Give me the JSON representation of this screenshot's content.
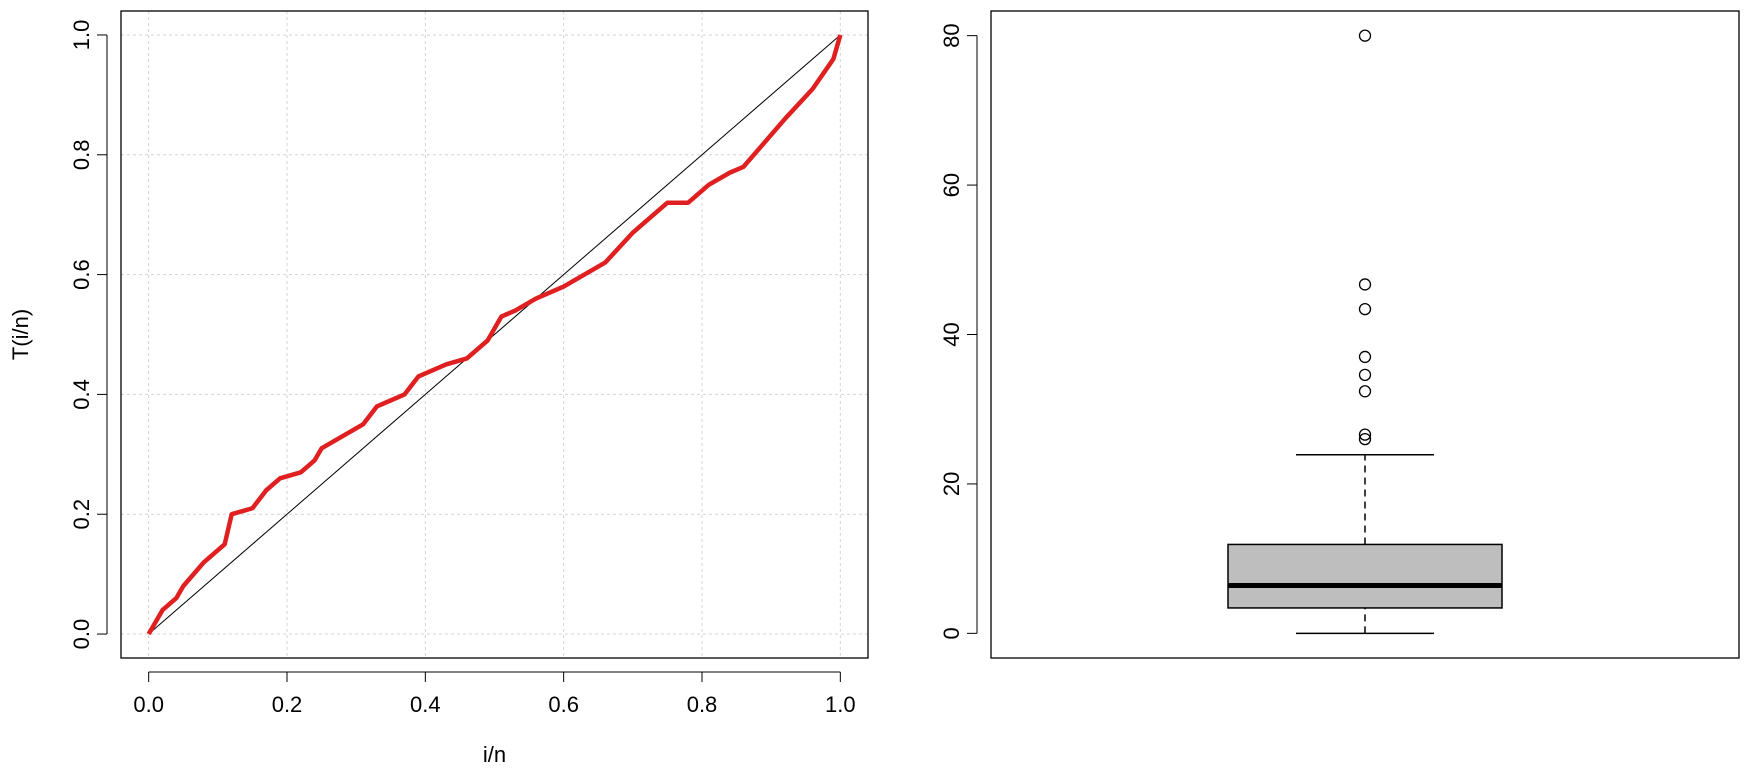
{
  "chart_data": [
    {
      "type": "line",
      "xlabel": "i/n",
      "ylabel": "T(i/n)",
      "xlim": [
        -0.04,
        1.04
      ],
      "ylim": [
        -0.04,
        1.04
      ],
      "grid": true,
      "xticks": [
        {
          "value": 0,
          "label": "0.0"
        },
        {
          "value": 0.2,
          "label": "0.2"
        },
        {
          "value": 0.4,
          "label": "0.4"
        },
        {
          "value": 0.6,
          "label": "0.6"
        },
        {
          "value": 0.8,
          "label": "0.8"
        },
        {
          "value": 1,
          "label": "1.0"
        }
      ],
      "yticks": [
        {
          "value": 0,
          "label": "0.0"
        },
        {
          "value": 0.2,
          "label": "0.2"
        },
        {
          "value": 0.4,
          "label": "0.4"
        },
        {
          "value": 0.6,
          "label": "0.6"
        },
        {
          "value": 0.8,
          "label": "0.8"
        },
        {
          "value": 1,
          "label": "1.0"
        }
      ],
      "series": [
        {
          "color": "#000000",
          "x": [
            0,
            1
          ],
          "values": [
            0,
            1
          ]
        },
        {
          "color": "#e02020",
          "x": [
            0,
            0.02,
            0.04,
            0.05,
            0.08,
            0.1,
            0.11,
            0.12,
            0.15,
            0.17,
            0.19,
            0.22,
            0.24,
            0.25,
            0.28,
            0.31,
            0.33,
            0.37,
            0.39,
            0.43,
            0.46,
            0.49,
            0.51,
            0.53,
            0.56,
            0.58,
            0.6,
            0.63,
            0.66,
            0.7,
            0.75,
            0.78,
            0.81,
            0.84,
            0.86,
            0.89,
            0.92,
            0.96,
            0.99,
            1
          ],
          "values": [
            0,
            0.04,
            0.06,
            0.08,
            0.12,
            0.14,
            0.15,
            0.2,
            0.21,
            0.24,
            0.26,
            0.27,
            0.29,
            0.31,
            0.33,
            0.35,
            0.38,
            0.4,
            0.43,
            0.45,
            0.46,
            0.49,
            0.53,
            0.54,
            0.56,
            0.57,
            0.58,
            0.6,
            0.62,
            0.67,
            0.72,
            0.72,
            0.75,
            0.77,
            0.78,
            0.82,
            0.86,
            0.91,
            0.96,
            1
          ]
        }
      ]
    },
    {
      "type": "box",
      "ylim": [
        -3.3,
        83.3
      ],
      "yticks": [
        0,
        20,
        40,
        60,
        80
      ],
      "color": "#bebebe",
      "stats": {
        "min": 0,
        "q1": 3.4,
        "median": 6.4,
        "q3": 11.9,
        "max": 23.9
      },
      "outliers": [
        26.0,
        26.6,
        32.4,
        34.6,
        37.0,
        43.4,
        46.7,
        80.0
      ]
    }
  ]
}
